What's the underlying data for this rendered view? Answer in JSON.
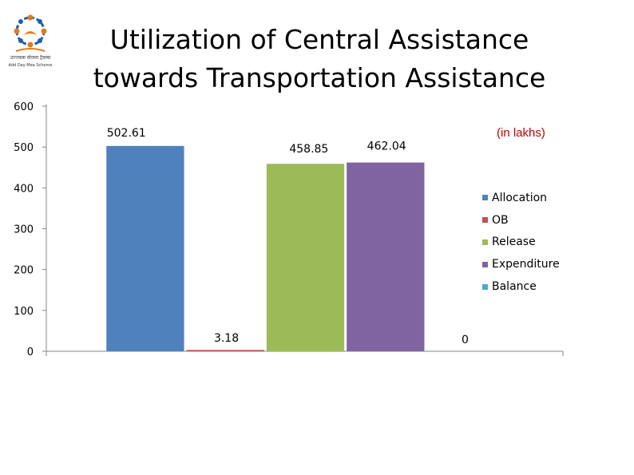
{
  "logo": {
    "caption_line1": "उज्ज्वला योजना ट्रैवल्स",
    "caption_line2": "Add Day Mea Scheme"
  },
  "header": {
    "title_line1": "Utilization of Central Assistance",
    "title_line2": "towards Transportation Assistance",
    "unit_note": "(in lakhs)"
  },
  "chart_data": {
    "type": "bar",
    "title": "Utilization of Central Assistance towards Transportation Assistance",
    "categories": [
      "Allocation",
      "OB",
      "Release",
      "Expenditure",
      "Balance"
    ],
    "values": [
      502.61,
      3.18,
      458.85,
      462.04,
      0
    ],
    "data_labels": [
      "502.61",
      "3.18",
      "458.85",
      "462.04",
      "0"
    ],
    "colors": [
      "#4f81bd",
      "#c0504d",
      "#9bbb59",
      "#8064a2",
      "#4bacc6"
    ],
    "ylim": [
      0,
      600
    ],
    "yticks": [
      0,
      100,
      200,
      300,
      400,
      500,
      600
    ],
    "grid": false,
    "legend": "right",
    "xlabel": "",
    "ylabel": ""
  },
  "legend": {
    "items": [
      "Allocation",
      "OB",
      "Release",
      "Expenditure",
      "Balance"
    ]
  }
}
